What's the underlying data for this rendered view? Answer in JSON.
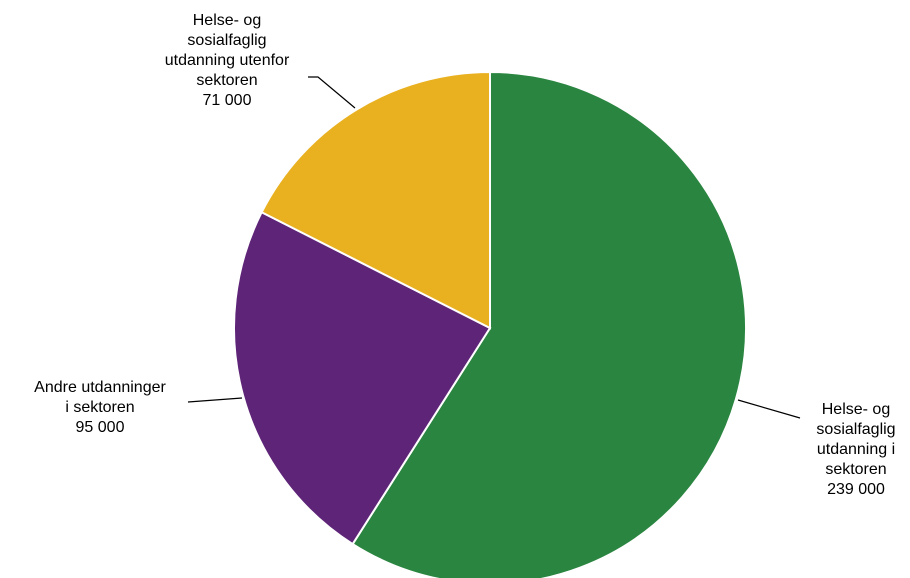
{
  "chart_data": {
    "type": "pie",
    "slices": [
      {
        "lines": [
          "Helse- og",
          "sosialfaglig",
          "utdanning i",
          "sektoren"
        ],
        "value_label": "239 000",
        "value": 239000,
        "color": "#2a8540"
      },
      {
        "lines": [
          "Andre utdanninger",
          "i sektoren"
        ],
        "value_label": "95 000",
        "value": 95000,
        "color": "#5e2478"
      },
      {
        "lines": [
          "Helse- og",
          "sosialfaglig",
          "utdanning utenfor",
          "sektoren"
        ],
        "value_label": "71 000",
        "value": 71000,
        "color": "#e9b120"
      }
    ],
    "start_angle": "12 o'clock",
    "direction": "clockwise",
    "data_labels": "outside with leader lines",
    "legend": "none"
  }
}
